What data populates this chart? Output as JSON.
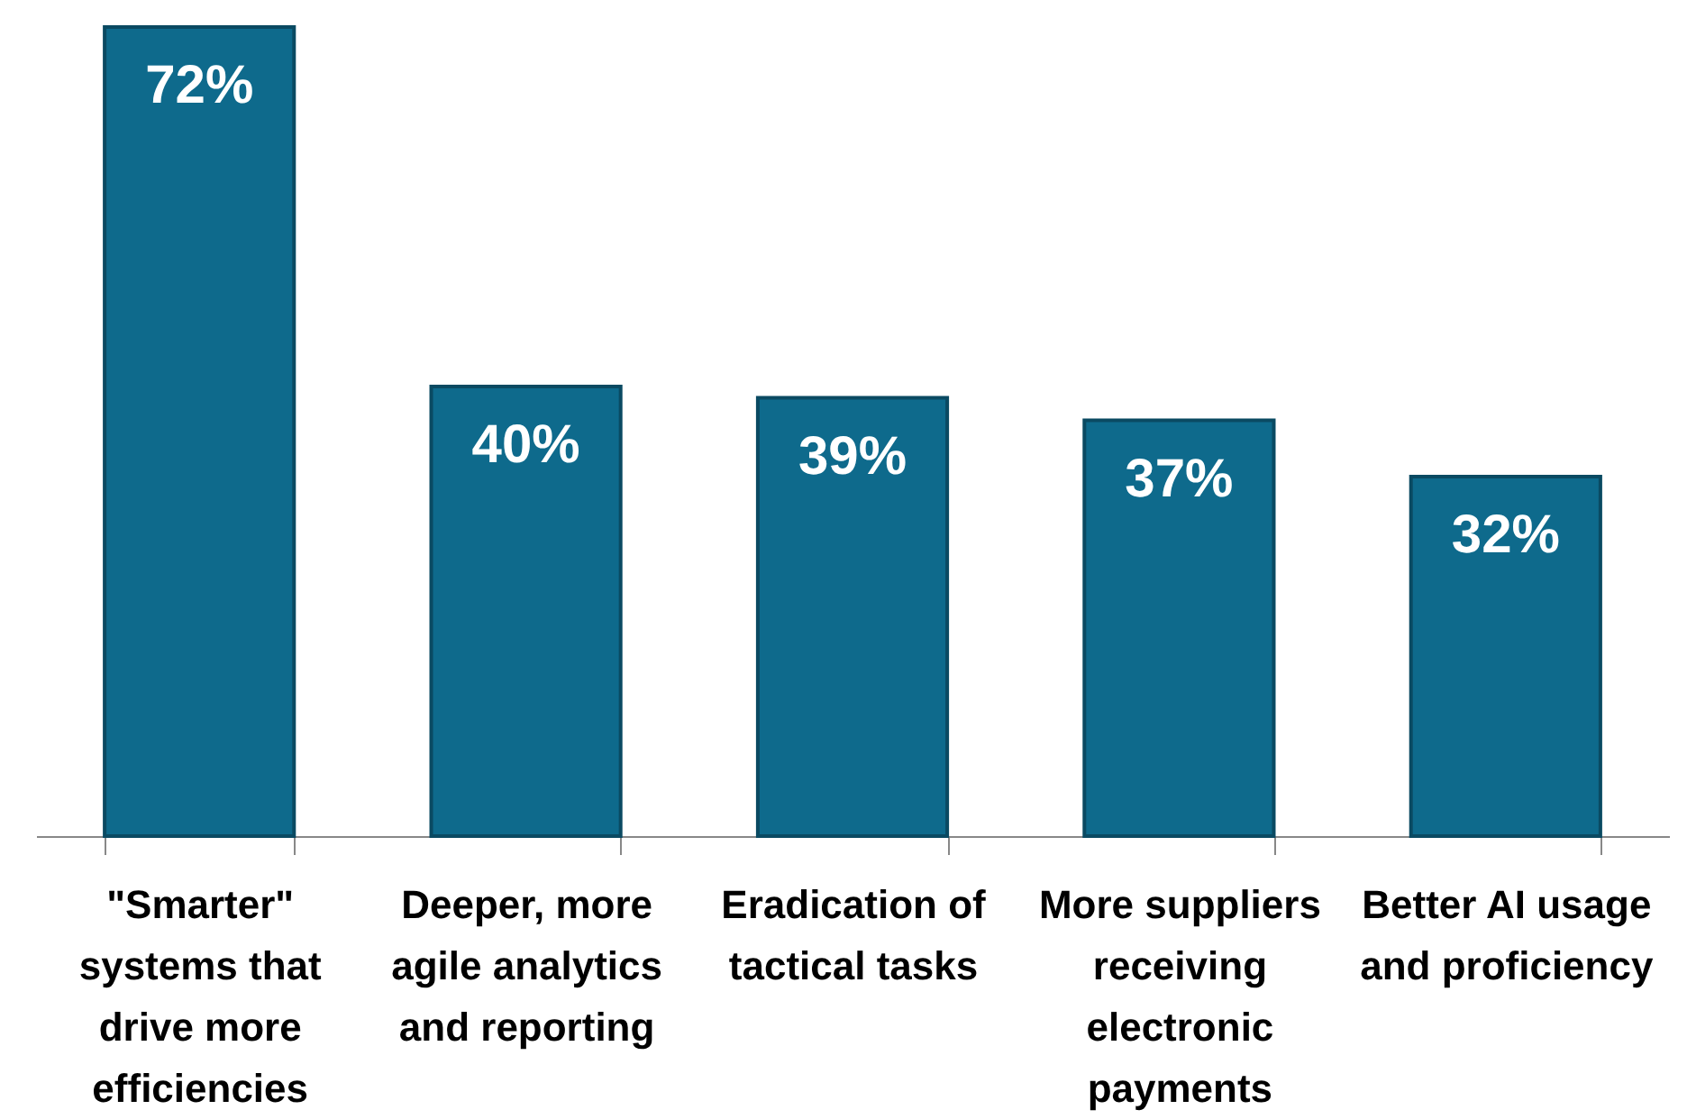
{
  "chart_data": {
    "type": "bar",
    "categories": [
      "\"Smarter\" systems that drive more efficiencies",
      "Deeper, more agile analytics and reporting",
      "Eradication of tactical tasks",
      "More suppliers receiving electronic payments",
      "Better AI usage and proficiency"
    ],
    "values": [
      72,
      40,
      39,
      37,
      32
    ],
    "value_labels": [
      "72%",
      "40%",
      "39%",
      "37%",
      "32%"
    ],
    "color": "#0e6a8c"
  }
}
